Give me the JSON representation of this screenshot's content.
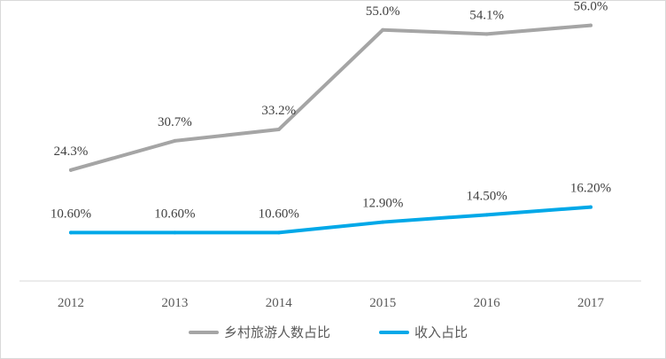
{
  "chart_data": {
    "type": "line",
    "categories": [
      "2012",
      "2013",
      "2014",
      "2015",
      "2016",
      "2017"
    ],
    "series": [
      {
        "name": "乡村旅游人数占比",
        "values": [
          24.3,
          30.7,
          33.2,
          55.0,
          54.1,
          56.0
        ],
        "labels": [
          "24.3%",
          "30.7%",
          "33.2%",
          "55.0%",
          "54.1%",
          "56.0%"
        ],
        "color": "#a5a5a5"
      },
      {
        "name": "收入占比",
        "values": [
          10.6,
          10.6,
          10.6,
          12.9,
          14.5,
          16.2
        ],
        "labels": [
          "10.60%",
          "10.60%",
          "10.60%",
          "12.90%",
          "14.50%",
          "16.20%"
        ],
        "color": "#00a8e8"
      }
    ],
    "ylim": [
      0,
      60
    ],
    "grid": false,
    "legend": "bottom"
  }
}
